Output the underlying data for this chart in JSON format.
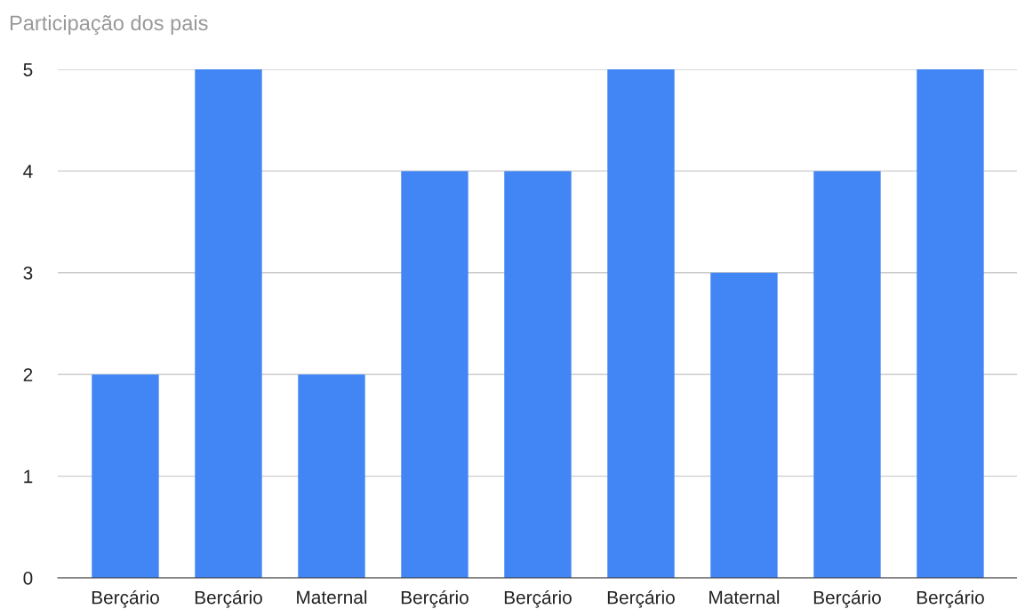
{
  "chart_data": {
    "type": "bar",
    "title": "Participação dos pais",
    "categories": [
      "Berçário",
      "Berçário",
      "Maternal",
      "Berçário",
      "Berçário",
      "Berçário",
      "Maternal",
      "Berçário",
      "Berçário"
    ],
    "values": [
      2,
      5,
      2,
      4,
      4,
      5,
      3,
      4,
      5
    ],
    "color": "#4285f4",
    "ylim": [
      0,
      5
    ],
    "yticks": [
      0,
      1,
      2,
      3,
      4,
      5
    ],
    "grid": "y",
    "legend": false
  }
}
